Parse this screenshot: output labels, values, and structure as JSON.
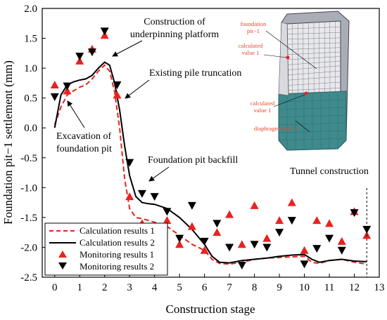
{
  "chart_data": {
    "type": "line",
    "xlabel": "Construction stage",
    "ylabel": "Foundation pit−1 settlement  (mm)",
    "xlim": [
      -0.5,
      13
    ],
    "ylim": [
      -2.5,
      2.0
    ],
    "x_ticks": [
      "0",
      "1",
      "2",
      "3",
      "4",
      "5",
      "6",
      "7",
      "8",
      "9",
      "10",
      "11",
      "12",
      "13"
    ],
    "y_ticks": [
      "2.0",
      "1.5",
      "1.0",
      "0.5",
      "0.0",
      "-0.5",
      "-1.0",
      "-1.5",
      "-2.0",
      "-2.5"
    ],
    "grid": false,
    "legend_position": "bottom-left",
    "series": [
      {
        "name": "Calculation results 1",
        "kind": "line",
        "style": "dashed",
        "color": "#e8231f",
        "x": [
          0,
          0.25,
          0.5,
          0.75,
          1.0,
          1.25,
          1.5,
          1.75,
          2.0,
          2.2,
          2.4,
          2.6,
          2.8,
          3.0,
          3.25,
          3.5,
          3.75,
          4.0,
          4.5,
          5.0,
          5.5,
          6.0,
          6.3,
          6.6,
          7.0,
          7.5,
          8.0,
          8.5,
          9.0,
          9.5,
          10.0,
          10.3,
          10.6,
          11.0,
          11.5,
          12.0,
          12.5
        ],
        "y": [
          0.05,
          0.35,
          0.55,
          0.62,
          0.68,
          0.72,
          0.82,
          0.95,
          1.05,
          0.95,
          0.6,
          0.0,
          -0.85,
          -1.35,
          -1.5,
          -1.52,
          -1.55,
          -1.58,
          -1.65,
          -1.8,
          -1.95,
          -2.05,
          -2.2,
          -2.27,
          -2.28,
          -2.25,
          -2.2,
          -2.18,
          -2.17,
          -2.16,
          -2.15,
          -2.25,
          -2.27,
          -2.22,
          -2.2,
          -2.25,
          -2.28
        ]
      },
      {
        "name": "Calculation results 2",
        "kind": "line",
        "style": "solid",
        "color": "#000000",
        "x": [
          0,
          0.25,
          0.5,
          0.75,
          1.0,
          1.25,
          1.5,
          1.75,
          2.0,
          2.2,
          2.4,
          2.6,
          2.8,
          3.0,
          3.25,
          3.5,
          3.75,
          4.0,
          4.5,
          5.0,
          5.5,
          6.0,
          6.3,
          6.6,
          7.0,
          7.5,
          8.0,
          8.5,
          9.0,
          9.5,
          10.0,
          10.3,
          10.6,
          11.0,
          11.5,
          12.0,
          12.5
        ],
        "y": [
          0.0,
          0.55,
          0.72,
          0.77,
          0.8,
          0.82,
          0.88,
          1.0,
          1.1,
          1.05,
          0.75,
          0.3,
          -0.3,
          -0.8,
          -1.15,
          -1.25,
          -1.27,
          -1.28,
          -1.35,
          -1.5,
          -1.7,
          -1.95,
          -2.15,
          -2.25,
          -2.26,
          -2.22,
          -2.2,
          -2.18,
          -2.15,
          -2.13,
          -2.12,
          -2.2,
          -2.25,
          -2.22,
          -2.2,
          -2.23,
          -2.24
        ]
      },
      {
        "name": "Monitoring results 1",
        "kind": "scatter",
        "marker": "triangle-up",
        "color": "#e8231f",
        "x": [
          0,
          0.5,
          1,
          1.5,
          2,
          2.5,
          3,
          3.5,
          4,
          4.5,
          5,
          5.5,
          6,
          6.5,
          7,
          7.5,
          8,
          8.5,
          9,
          9.5,
          10,
          10.5,
          11,
          11.5,
          12,
          12.5
        ],
        "y": [
          0.72,
          0.62,
          1.12,
          1.32,
          1.55,
          0.55,
          -1.15,
          -1.6,
          -1.85,
          -1.55,
          -1.95,
          -1.65,
          -2.05,
          -1.75,
          -1.45,
          -1.95,
          -1.3,
          -1.85,
          -1.55,
          -1.25,
          -2.05,
          -1.55,
          -1.6,
          -1.9,
          -1.4,
          -1.8
        ]
      },
      {
        "name": "Monitoring results 2",
        "kind": "scatter",
        "marker": "triangle-down",
        "color": "#000000",
        "x": [
          0,
          0.5,
          1,
          1.5,
          2,
          2.5,
          3,
          3.5,
          4,
          4.5,
          5,
          5.5,
          6,
          6.5,
          7,
          7.5,
          8,
          8.5,
          9,
          9.5,
          10,
          10.5,
          11,
          11.5,
          12,
          12.5
        ],
        "y": [
          0.52,
          0.7,
          1.2,
          1.27,
          1.62,
          0.72,
          -0.58,
          -1.1,
          -1.15,
          -1.4,
          -1.85,
          -1.3,
          -1.9,
          -1.6,
          -2.0,
          -2.3,
          -1.95,
          -2.0,
          -1.75,
          -1.55,
          -2.28,
          -2.02,
          -1.85,
          -2.05,
          -1.42,
          -1.7
        ]
      }
    ],
    "annotations": {
      "platform": [
        "Construction of",
        "underpinning platform"
      ],
      "pile": "Existing pile truncation",
      "excavation": [
        "Excavation of",
        "foundation pit"
      ],
      "backfill": "Foundation pit backfill",
      "tunnel": "Tunnel construction"
    },
    "inset": {
      "labels": {
        "pit": [
          "foundation",
          "pit−1"
        ],
        "calc_top": [
          "calculated",
          "value 1"
        ],
        "calc_bottom": [
          "calculated",
          "value 1"
        ],
        "wall": "diaphragm wall −1"
      },
      "colors": {
        "wall": "#3f8a8c",
        "mesh": "#b9bcc6",
        "label": "#e8462a"
      }
    }
  }
}
